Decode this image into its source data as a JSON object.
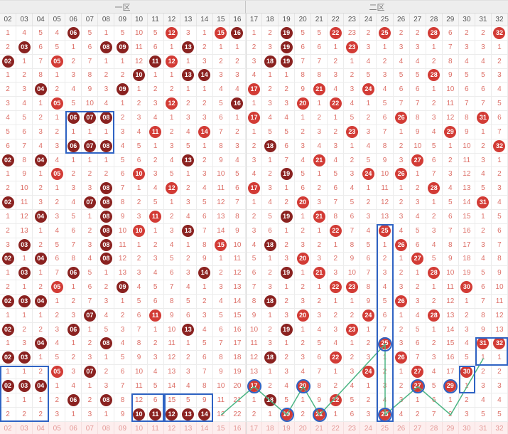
{
  "header": {
    "zone1": "一区",
    "zone2": "二区"
  },
  "chart_data": {
    "type": "table",
    "columns": [
      "02",
      "03",
      "04",
      "05",
      "06",
      "07",
      "08",
      "09",
      "10",
      "11",
      "12",
      "13",
      "14",
      "15",
      "16",
      "17",
      "18",
      "19",
      "20",
      "21",
      "22",
      "23",
      "24",
      "25",
      "26",
      "27",
      "28",
      "29",
      "30",
      "31",
      "32"
    ],
    "rows": [
      [
        "1",
        "4",
        "5",
        "4",
        "D06",
        "5",
        "1",
        "5",
        "10",
        "5",
        "R12",
        "3",
        "1",
        "R15",
        "D16",
        "1",
        "2",
        "D19",
        "5",
        "5",
        "R22",
        "23",
        "2",
        "R25",
        "2",
        "2",
        "R28",
        "6",
        "2",
        "2",
        "R32"
      ],
      [
        "2",
        "D03",
        "6",
        "5",
        "1",
        "6",
        "D08",
        "D09",
        "11",
        "6",
        "1",
        "D13",
        "2",
        "1",
        "1",
        "2",
        "3",
        "D19",
        "6",
        "6",
        "1",
        "R23",
        "3",
        "1",
        "3",
        "3",
        "1",
        "7",
        "3",
        "3",
        "1"
      ],
      [
        "D02",
        "1",
        "7",
        "R05",
        "2",
        "7",
        "1",
        "1",
        "12",
        "D11",
        "R12",
        "1",
        "3",
        "2",
        "2",
        "3",
        "D18",
        "D19",
        "7",
        "7",
        "2",
        "1",
        "4",
        "2",
        "4",
        "4",
        "2",
        "8",
        "4",
        "4",
        "2"
      ],
      [
        "1",
        "2",
        "8",
        "1",
        "3",
        "8",
        "2",
        "2",
        "D10",
        "1",
        "1",
        "D13",
        "D14",
        "3",
        "3",
        "4",
        "1",
        "1",
        "8",
        "8",
        "3",
        "2",
        "5",
        "3",
        "5",
        "5",
        "R28",
        "9",
        "5",
        "5",
        "3"
      ],
      [
        "2",
        "3",
        "D04",
        "2",
        "4",
        "9",
        "3",
        "D09",
        "1",
        "2",
        "2",
        "1",
        "1",
        "4",
        "4",
        "R17",
        "2",
        "2",
        "9",
        "R21",
        "4",
        "3",
        "R24",
        "4",
        "6",
        "6",
        "1",
        "10",
        "6",
        "6",
        "4"
      ],
      [
        "3",
        "4",
        "1",
        "R05",
        "5",
        "10",
        "4",
        "1",
        "2",
        "3",
        "R12",
        "2",
        "2",
        "5",
        "D16",
        "1",
        "3",
        "3",
        "R20",
        "1",
        "R22",
        "4",
        "1",
        "5",
        "7",
        "7",
        "2",
        "11",
        "7",
        "7",
        "5"
      ],
      [
        "4",
        "5",
        "2",
        "1",
        "D06",
        "D07",
        "D08",
        "2",
        "3",
        "4",
        "1",
        "3",
        "3",
        "6",
        "1",
        "R17",
        "4",
        "4",
        "1",
        "2",
        "1",
        "5",
        "2",
        "6",
        "R26",
        "8",
        "3",
        "12",
        "8",
        "R31",
        "6"
      ],
      [
        "5",
        "6",
        "3",
        "2",
        "1",
        "1",
        "1",
        "3",
        "4",
        "R11",
        "2",
        "4",
        "R14",
        "7",
        "2",
        "1",
        "5",
        "5",
        "2",
        "3",
        "2",
        "R23",
        "3",
        "7",
        "1",
        "9",
        "4",
        "R29",
        "9",
        "1",
        "7"
      ],
      [
        "6",
        "7",
        "4",
        "3",
        "D06",
        "D07",
        "D08",
        "4",
        "5",
        "1",
        "3",
        "5",
        "1",
        "8",
        "3",
        "2",
        "D18",
        "6",
        "3",
        "4",
        "3",
        "1",
        "4",
        "8",
        "2",
        "10",
        "5",
        "1",
        "10",
        "2",
        "R32"
      ],
      [
        "D02",
        "8",
        "D04",
        "4",
        "1",
        "1",
        "1",
        "5",
        "6",
        "2",
        "4",
        "D13",
        "2",
        "9",
        "4",
        "3",
        "1",
        "7",
        "4",
        "R21",
        "4",
        "2",
        "5",
        "9",
        "3",
        "R27",
        "6",
        "2",
        "11",
        "3",
        "1"
      ],
      [
        "1",
        "9",
        "1",
        "R05",
        "2",
        "2",
        "2",
        "6",
        "R10",
        "3",
        "5",
        "1",
        "3",
        "10",
        "5",
        "4",
        "2",
        "D19",
        "5",
        "1",
        "5",
        "3",
        "R24",
        "10",
        "R26",
        "1",
        "7",
        "3",
        "12",
        "4",
        "2"
      ],
      [
        "2",
        "10",
        "2",
        "1",
        "3",
        "3",
        "D08",
        "7",
        "1",
        "4",
        "R12",
        "2",
        "4",
        "11",
        "6",
        "R17",
        "3",
        "1",
        "6",
        "2",
        "6",
        "4",
        "1",
        "11",
        "1",
        "2",
        "R28",
        "4",
        "13",
        "5",
        "3"
      ],
      [
        "D02",
        "11",
        "3",
        "2",
        "4",
        "D07",
        "D08",
        "8",
        "2",
        "5",
        "1",
        "3",
        "5",
        "12",
        "7",
        "1",
        "4",
        "2",
        "R20",
        "3",
        "7",
        "5",
        "2",
        "12",
        "2",
        "3",
        "1",
        "5",
        "14",
        "R31",
        "4"
      ],
      [
        "1",
        "12",
        "D04",
        "3",
        "5",
        "1",
        "D08",
        "9",
        "3",
        "R11",
        "2",
        "4",
        "6",
        "13",
        "8",
        "2",
        "5",
        "D19",
        "1",
        "R21",
        "8",
        "6",
        "3",
        "13",
        "3",
        "4",
        "2",
        "6",
        "15",
        "1",
        "5"
      ],
      [
        "2",
        "13",
        "1",
        "4",
        "6",
        "2",
        "D08",
        "10",
        "R10",
        "1",
        "3",
        "D13",
        "7",
        "14",
        "9",
        "3",
        "6",
        "1",
        "2",
        "1",
        "R22",
        "7",
        "4",
        "R25",
        "4",
        "5",
        "3",
        "7",
        "16",
        "2",
        "6"
      ],
      [
        "3",
        "D03",
        "2",
        "5",
        "7",
        "3",
        "D08",
        "11",
        "1",
        "2",
        "4",
        "1",
        "8",
        "R15",
        "10",
        "4",
        "D18",
        "2",
        "3",
        "2",
        "1",
        "8",
        "5",
        "1",
        "R26",
        "6",
        "4",
        "8",
        "17",
        "3",
        "7"
      ],
      [
        "D02",
        "1",
        "D04",
        "6",
        "8",
        "4",
        "D08",
        "12",
        "2",
        "3",
        "5",
        "2",
        "9",
        "1",
        "11",
        "5",
        "1",
        "3",
        "R20",
        "3",
        "2",
        "9",
        "6",
        "2",
        "1",
        "R27",
        "5",
        "9",
        "18",
        "4",
        "8"
      ],
      [
        "1",
        "D03",
        "1",
        "7",
        "D06",
        "5",
        "1",
        "13",
        "3",
        "4",
        "6",
        "3",
        "D14",
        "2",
        "12",
        "6",
        "2",
        "D19",
        "1",
        "R21",
        "3",
        "10",
        "7",
        "3",
        "2",
        "1",
        "R28",
        "10",
        "19",
        "5",
        "9"
      ],
      [
        "2",
        "1",
        "2",
        "R05",
        "1",
        "6",
        "2",
        "D09",
        "4",
        "5",
        "7",
        "4",
        "1",
        "3",
        "13",
        "7",
        "3",
        "1",
        "2",
        "1",
        "R22",
        "R23",
        "8",
        "4",
        "3",
        "2",
        "1",
        "11",
        "R30",
        "6",
        "10"
      ],
      [
        "D02",
        "D03",
        "D04",
        "1",
        "2",
        "7",
        "3",
        "1",
        "5",
        "6",
        "8",
        "5",
        "2",
        "4",
        "14",
        "8",
        "D18",
        "2",
        "3",
        "2",
        "1",
        "1",
        "9",
        "5",
        "R26",
        "3",
        "2",
        "12",
        "1",
        "7",
        "11"
      ],
      [
        "1",
        "1",
        "1",
        "2",
        "3",
        "D07",
        "4",
        "2",
        "6",
        "R11",
        "9",
        "6",
        "3",
        "5",
        "15",
        "9",
        "1",
        "3",
        "R20",
        "3",
        "2",
        "2",
        "R24",
        "6",
        "1",
        "4",
        "R28",
        "13",
        "2",
        "8",
        "12"
      ],
      [
        "D02",
        "2",
        "2",
        "3",
        "D06",
        "1",
        "5",
        "3",
        "7",
        "1",
        "10",
        "D13",
        "4",
        "6",
        "16",
        "10",
        "2",
        "D19",
        "1",
        "4",
        "3",
        "R23",
        "1",
        "7",
        "2",
        "5",
        "1",
        "14",
        "3",
        "9",
        "13"
      ],
      [
        "1",
        "3",
        "D04",
        "4",
        "1",
        "2",
        "D08",
        "4",
        "8",
        "2",
        "11",
        "1",
        "5",
        "7",
        "17",
        "11",
        "3",
        "1",
        "2",
        "5",
        "4",
        "1",
        "2",
        "R25",
        "3",
        "6",
        "2",
        "15",
        "4",
        "R31",
        "R32"
      ],
      [
        "D02",
        "D03",
        "1",
        "5",
        "2",
        "3",
        "1",
        "5",
        "9",
        "3",
        "12",
        "2",
        "6",
        "8",
        "18",
        "12",
        "D18",
        "2",
        "3",
        "6",
        "R22",
        "2",
        "3",
        "1",
        "R26",
        "7",
        "3",
        "16",
        "5",
        "1",
        "1"
      ],
      [
        "1",
        "1",
        "2",
        "R05",
        "3",
        "D07",
        "2",
        "6",
        "10",
        "4",
        "13",
        "3",
        "7",
        "9",
        "19",
        "13",
        "1",
        "3",
        "4",
        "7",
        "1",
        "3",
        "R24",
        "2",
        "1",
        "R27",
        "4",
        "17",
        "R30",
        "2",
        "2"
      ],
      [
        "D02",
        "D03",
        "D04",
        "1",
        "4",
        "1",
        "3",
        "7",
        "11",
        "5",
        "14",
        "4",
        "8",
        "10",
        "20",
        "R17",
        "2",
        "4",
        "R20",
        "8",
        "2",
        "4",
        "1",
        "3",
        "2",
        "R27",
        "5",
        "R29",
        "1",
        "3",
        "3"
      ],
      [
        "1",
        "1",
        "1",
        "2",
        "D06",
        "2",
        "D08",
        "8",
        "12",
        "6",
        "15",
        "5",
        "9",
        "11",
        "21",
        "1",
        "D18",
        "5",
        "1",
        "9",
        "R22",
        "5",
        "2",
        "4",
        "3",
        "1",
        "6",
        "1",
        "2",
        "4",
        "4"
      ],
      [
        "2",
        "2",
        "2",
        "3",
        "1",
        "3",
        "1",
        "9",
        "D10",
        "D11",
        "D12",
        "D13",
        "D14",
        "12",
        "22",
        "2",
        "1",
        "R19",
        "2",
        "R21",
        "1",
        "6",
        "3",
        "R25",
        "4",
        "2",
        "7",
        "2",
        "3",
        "5",
        "5"
      ]
    ]
  },
  "annotations": {
    "boxes": [
      {
        "cols": [
          "06",
          "08"
        ],
        "rows": [
          7,
          9
        ]
      },
      {
        "cols": [
          "25",
          "25"
        ],
        "rows": [
          15,
          28
        ]
      },
      {
        "cols": [
          "02",
          "04"
        ],
        "rows": [
          25,
          28
        ]
      },
      {
        "cols": [
          "10",
          "11"
        ],
        "rows": [
          27,
          28
        ]
      },
      {
        "cols": [
          "12",
          "14"
        ],
        "rows": [
          27,
          28
        ]
      },
      {
        "cols": [
          "31",
          "32"
        ],
        "rows": [
          23,
          24
        ]
      },
      {
        "cols": [
          "30",
          "30"
        ],
        "rows": [
          25,
          26
        ]
      }
    ],
    "circles": [
      {
        "col": "17",
        "row": 26
      },
      {
        "col": "20",
        "row": 26
      },
      {
        "col": "27",
        "row": 26
      },
      {
        "col": "29",
        "row": 26
      },
      {
        "col": "25",
        "row": 23
      },
      {
        "col": "25",
        "row": 28
      },
      {
        "col": "21",
        "row": 28
      },
      {
        "col": "19",
        "row": 28
      }
    ],
    "polyline": [
      {
        "col": "15",
        "row": 28
      },
      {
        "col": "17",
        "row": 26
      },
      {
        "col": "19",
        "row": 28
      },
      {
        "col": "20",
        "row": 26
      },
      {
        "col": "21",
        "row": 28
      },
      {
        "col": "25",
        "row": 23
      },
      {
        "col": "25",
        "row": 28
      },
      {
        "col": "27",
        "row": 26
      },
      {
        "col": "29",
        "row": 28
      },
      {
        "col": "30",
        "row": 26
      },
      {
        "col": "31",
        "row": 24
      }
    ]
  },
  "colors": {
    "ball_dark": "#8a2220",
    "ball_red": "#d23b35",
    "miss_text": "#dd7068",
    "annotation_blue": "#2f63c4",
    "annotation_green": "#4cb584",
    "footer_bg": "#fdeeee",
    "footer_text": "#e49a97",
    "header_bg": "#ededed",
    "header_text": "#777777",
    "colhead_text": "#555555",
    "grid_line": "#ececec"
  }
}
